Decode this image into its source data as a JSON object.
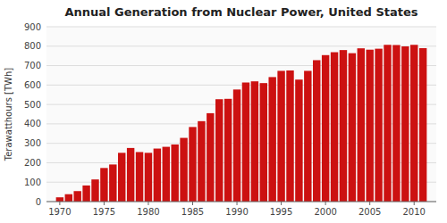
{
  "chart_data": {
    "type": "bar",
    "title": "Annual Generation from Nuclear Power, United States",
    "ylabel": "Terawatthours [TWh]",
    "x": [
      1970,
      1971,
      1972,
      1973,
      1974,
      1975,
      1976,
      1977,
      1978,
      1979,
      1980,
      1981,
      1982,
      1983,
      1984,
      1985,
      1986,
      1987,
      1988,
      1989,
      1990,
      1991,
      1992,
      1993,
      1994,
      1995,
      1996,
      1997,
      1998,
      1999,
      2000,
      2001,
      2002,
      2003,
      2004,
      2005,
      2006,
      2007,
      2008,
      2009,
      2010,
      2011
    ],
    "values": [
      22,
      38,
      54,
      83,
      114,
      173,
      191,
      251,
      276,
      255,
      251,
      273,
      282,
      294,
      328,
      384,
      414,
      455,
      527,
      529,
      577,
      613,
      619,
      610,
      641,
      673,
      675,
      628,
      673,
      728,
      754,
      769,
      780,
      764,
      789,
      782,
      787,
      807,
      806,
      799,
      807,
      790
    ],
    "color": "#cc1111",
    "xlim": [
      1968.5,
      2012.5
    ],
    "xticks": [
      1970,
      1975,
      1980,
      1985,
      1990,
      1995,
      2000,
      2005,
      2010
    ],
    "ylim": [
      0,
      900
    ],
    "yticks": [
      0,
      100,
      200,
      300,
      400,
      500,
      600,
      700,
      800,
      900
    ],
    "grid": true
  }
}
